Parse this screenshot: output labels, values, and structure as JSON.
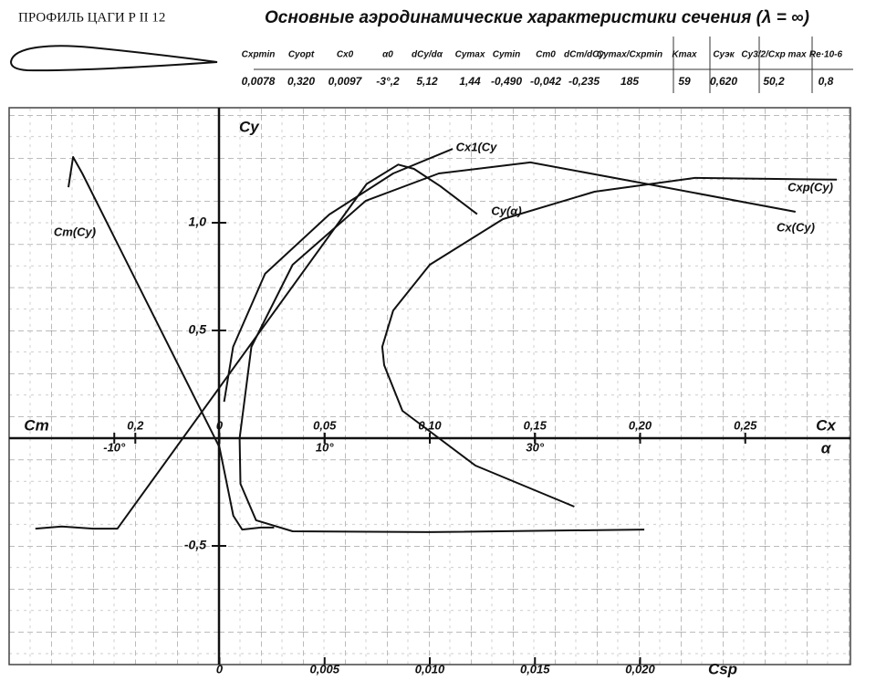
{
  "profile": {
    "title": "ПРОФИЛЬ ЦАГИ Р II 12"
  },
  "header": {
    "title": "Основные аэродинамические характеристики сечения (λ = ∞)"
  },
  "table": {
    "headers": [
      "Cxpmin",
      "Cyopt",
      "Cx0",
      "α0",
      "dCy/dα",
      "Cymax",
      "Cymin",
      "Cm0",
      "dCm/dCy",
      "Cymax/Cxpmin",
      "Kmax",
      "Cyэк",
      "Cy3/2/Cxp max",
      "Re·10-6"
    ],
    "values": [
      "0,0078",
      "0,320",
      "0,0097",
      "-3°,2",
      "5,12",
      "1,44",
      "-0,490",
      "-0,042",
      "-0,235",
      "185",
      "59",
      "0,620",
      "50,2",
      "0,8"
    ]
  },
  "chart_data": {
    "type": "line",
    "y_label": "Cy",
    "ylim": [
      -1.0,
      1.5
    ],
    "yticks": [
      {
        "value": -0.5,
        "label": "-0,5"
      },
      {
        "value": 0.5,
        "label": "0,5"
      },
      {
        "value": 1.0,
        "label": "1,0"
      }
    ],
    "x_axes": [
      {
        "label": "Cx",
        "xlim": [
          -0.1,
          0.3
        ],
        "xticks": [
          0,
          {
            "value": 0.05,
            "label": "0,05"
          },
          {
            "value": 0.1,
            "label": "0,10"
          },
          {
            "value": 0.15,
            "label": "0,15"
          },
          {
            "value": 0.2,
            "label": "0,20"
          },
          {
            "value": 0.25,
            "label": "0,25"
          }
        ]
      },
      {
        "label": "α",
        "xlim": [
          -20,
          60
        ],
        "xticks": [
          {
            "value": -10,
            "label": "-10°"
          },
          {
            "value": 10,
            "label": "10°"
          },
          {
            "value": 30,
            "label": "30°"
          }
        ]
      },
      {
        "label": "Cm",
        "xlim": [
          0.5,
          -1.5
        ],
        "xticks": [
          {
            "value": 0.2,
            "label": "0,2"
          }
        ]
      },
      {
        "label": "Csp",
        "xlim": [
          -0.01,
          0.03
        ],
        "xticks": [
          0,
          {
            "value": 0.005,
            "label": "0,005"
          },
          {
            "value": 0.01,
            "label": "0,010"
          },
          {
            "value": 0.015,
            "label": "0,015"
          },
          {
            "value": 0.02,
            "label": "0,020"
          }
        ]
      }
    ],
    "series": [
      {
        "name": "Cy(α)",
        "x_axis": 1,
        "color": "#111",
        "x": [
          -17.5,
          -15,
          -12,
          -9.7,
          14,
          17,
          18.5,
          21,
          24.5
        ],
        "values": [
          -0.42,
          -0.41,
          -0.42,
          -0.42,
          1.18,
          1.27,
          1.25,
          1.17,
          1.04
        ]
      },
      {
        "name": "Cm(Cy)",
        "x_axis": 2,
        "color": "#111",
        "x": [
          0.359,
          0.348,
          0.326,
          0.174,
          0,
          -0.033,
          -0.054,
          -0.098,
          -0.13
        ],
        "values": [
          1.165,
          1.305,
          1.229,
          0.636,
          -0.042,
          -0.36,
          -0.424,
          -0.415,
          -0.415
        ]
      },
      {
        "name": "Cx1(Cy",
        "x_axis": 0,
        "color": "#111",
        "x": [
          0.0022,
          0.0065,
          0.0217,
          0.0522,
          0.0826,
          0.1109
        ],
        "values": [
          0.169,
          0.424,
          0.763,
          1.038,
          1.229,
          1.343
        ]
      },
      {
        "name": "Cxp(Cy)",
        "x_axis": 3,
        "color": "#111",
        "x": [
          0.01687,
          0.01217,
          0.0087,
          0.00783,
          0.00774,
          0.00826,
          0.01,
          0.01348,
          0.01783,
          0.02261,
          0.02935
        ],
        "values": [
          -0.318,
          -0.127,
          0.127,
          0.339,
          0.424,
          0.593,
          0.805,
          1.017,
          1.144,
          1.208,
          1.2
        ]
      },
      {
        "name": "Cx(Cy)",
        "x_axis": 0,
        "color": "#111",
        "x": [
          0.202,
          0.1,
          0.0348,
          0.0174,
          0.01,
          0.0096,
          0.0152,
          0.0348,
          0.0696,
          0.1043,
          0.1478,
          0.2,
          0.2739
        ],
        "values": [
          -0.424,
          -0.436,
          -0.432,
          -0.381,
          -0.212,
          0,
          0.424,
          0.805,
          1.102,
          1.229,
          1.28,
          1.186,
          1.051
        ]
      }
    ]
  }
}
